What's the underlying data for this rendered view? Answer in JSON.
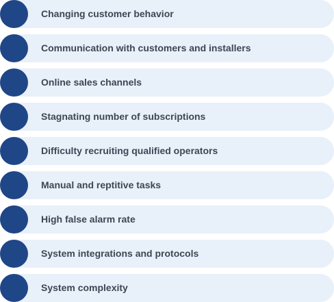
{
  "items": [
    {
      "label": "Changing customer behavior"
    },
    {
      "label": "Communication with customers and installers"
    },
    {
      "label": "Online sales channels"
    },
    {
      "label": "Stagnating number of subscriptions"
    },
    {
      "label": "Difficulty recruiting qualified operators"
    },
    {
      "label": "Manual and reptitive tasks"
    },
    {
      "label": "High false alarm rate"
    },
    {
      "label": "System integrations and protocols"
    },
    {
      "label": "System complexity"
    }
  ],
  "colors": {
    "dot": "#1f4687",
    "pill": "#e8f0fa",
    "text": "#3e4654"
  }
}
